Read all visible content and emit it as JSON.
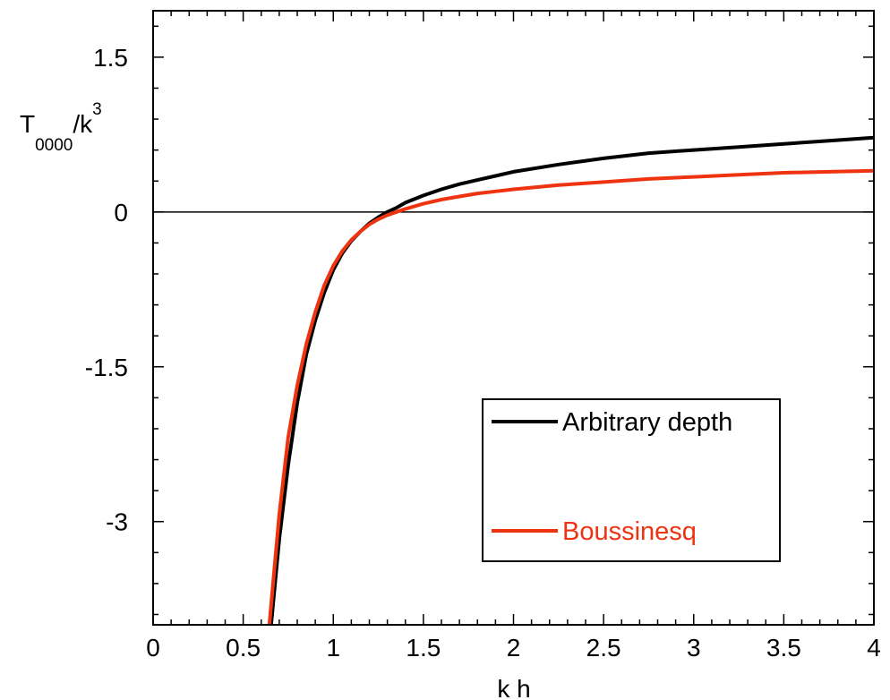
{
  "chart_data": {
    "type": "line",
    "xlabel": "k h",
    "ylabel": {
      "main": "T",
      "subscript": "0000",
      "divider": "/k",
      "superscript": "3"
    },
    "xlim": [
      0,
      4
    ],
    "ylim": [
      -4.0,
      1.95
    ],
    "x_ticks": [
      0,
      0.5,
      1,
      1.5,
      2,
      2.5,
      3,
      3.5,
      4
    ],
    "x_tick_labels": [
      "0",
      "0.5",
      "1",
      "1.5",
      "2",
      "2.5",
      "3",
      "3.5",
      "4"
    ],
    "y_ticks": [
      -3,
      -1.5,
      0,
      1.5
    ],
    "y_tick_labels": [
      "-3",
      "-1.5",
      "0",
      "1.5"
    ],
    "zero_line": true,
    "grid": false,
    "legend_position": "lower-right",
    "series": [
      {
        "name": "Arbitrary depth",
        "color": "#000000",
        "x": [
          0.655,
          0.7,
          0.75,
          0.8,
          0.85,
          0.9,
          0.95,
          1.0,
          1.05,
          1.1,
          1.15,
          1.2,
          1.25,
          1.3,
          1.35,
          1.4,
          1.5,
          1.6,
          1.7,
          1.8,
          1.9,
          2.0,
          2.25,
          2.5,
          2.75,
          3.0,
          3.25,
          3.5,
          3.75,
          4.0
        ],
        "y": [
          -4.0,
          -3.17,
          -2.45,
          -1.85,
          -1.38,
          -1.05,
          -0.78,
          -0.56,
          -0.4,
          -0.28,
          -0.19,
          -0.11,
          -0.05,
          0.0,
          0.04,
          0.09,
          0.16,
          0.22,
          0.27,
          0.31,
          0.35,
          0.39,
          0.46,
          0.52,
          0.57,
          0.6,
          0.63,
          0.66,
          0.69,
          0.72
        ]
      },
      {
        "name": "Boussinesq",
        "color": "#ee3311",
        "x": [
          0.645,
          0.7,
          0.75,
          0.8,
          0.85,
          0.9,
          0.95,
          1.0,
          1.05,
          1.1,
          1.15,
          1.2,
          1.25,
          1.3,
          1.35,
          1.4,
          1.5,
          1.6,
          1.7,
          1.8,
          1.9,
          2.0,
          2.25,
          2.5,
          2.75,
          3.0,
          3.25,
          3.5,
          3.75,
          4.0
        ],
        "y": [
          -4.0,
          -2.93,
          -2.18,
          -1.68,
          -1.28,
          -0.97,
          -0.71,
          -0.52,
          -0.38,
          -0.27,
          -0.19,
          -0.12,
          -0.07,
          -0.03,
          0.0,
          0.03,
          0.08,
          0.12,
          0.15,
          0.18,
          0.2,
          0.22,
          0.26,
          0.29,
          0.32,
          0.34,
          0.36,
          0.38,
          0.39,
          0.4
        ]
      }
    ]
  }
}
